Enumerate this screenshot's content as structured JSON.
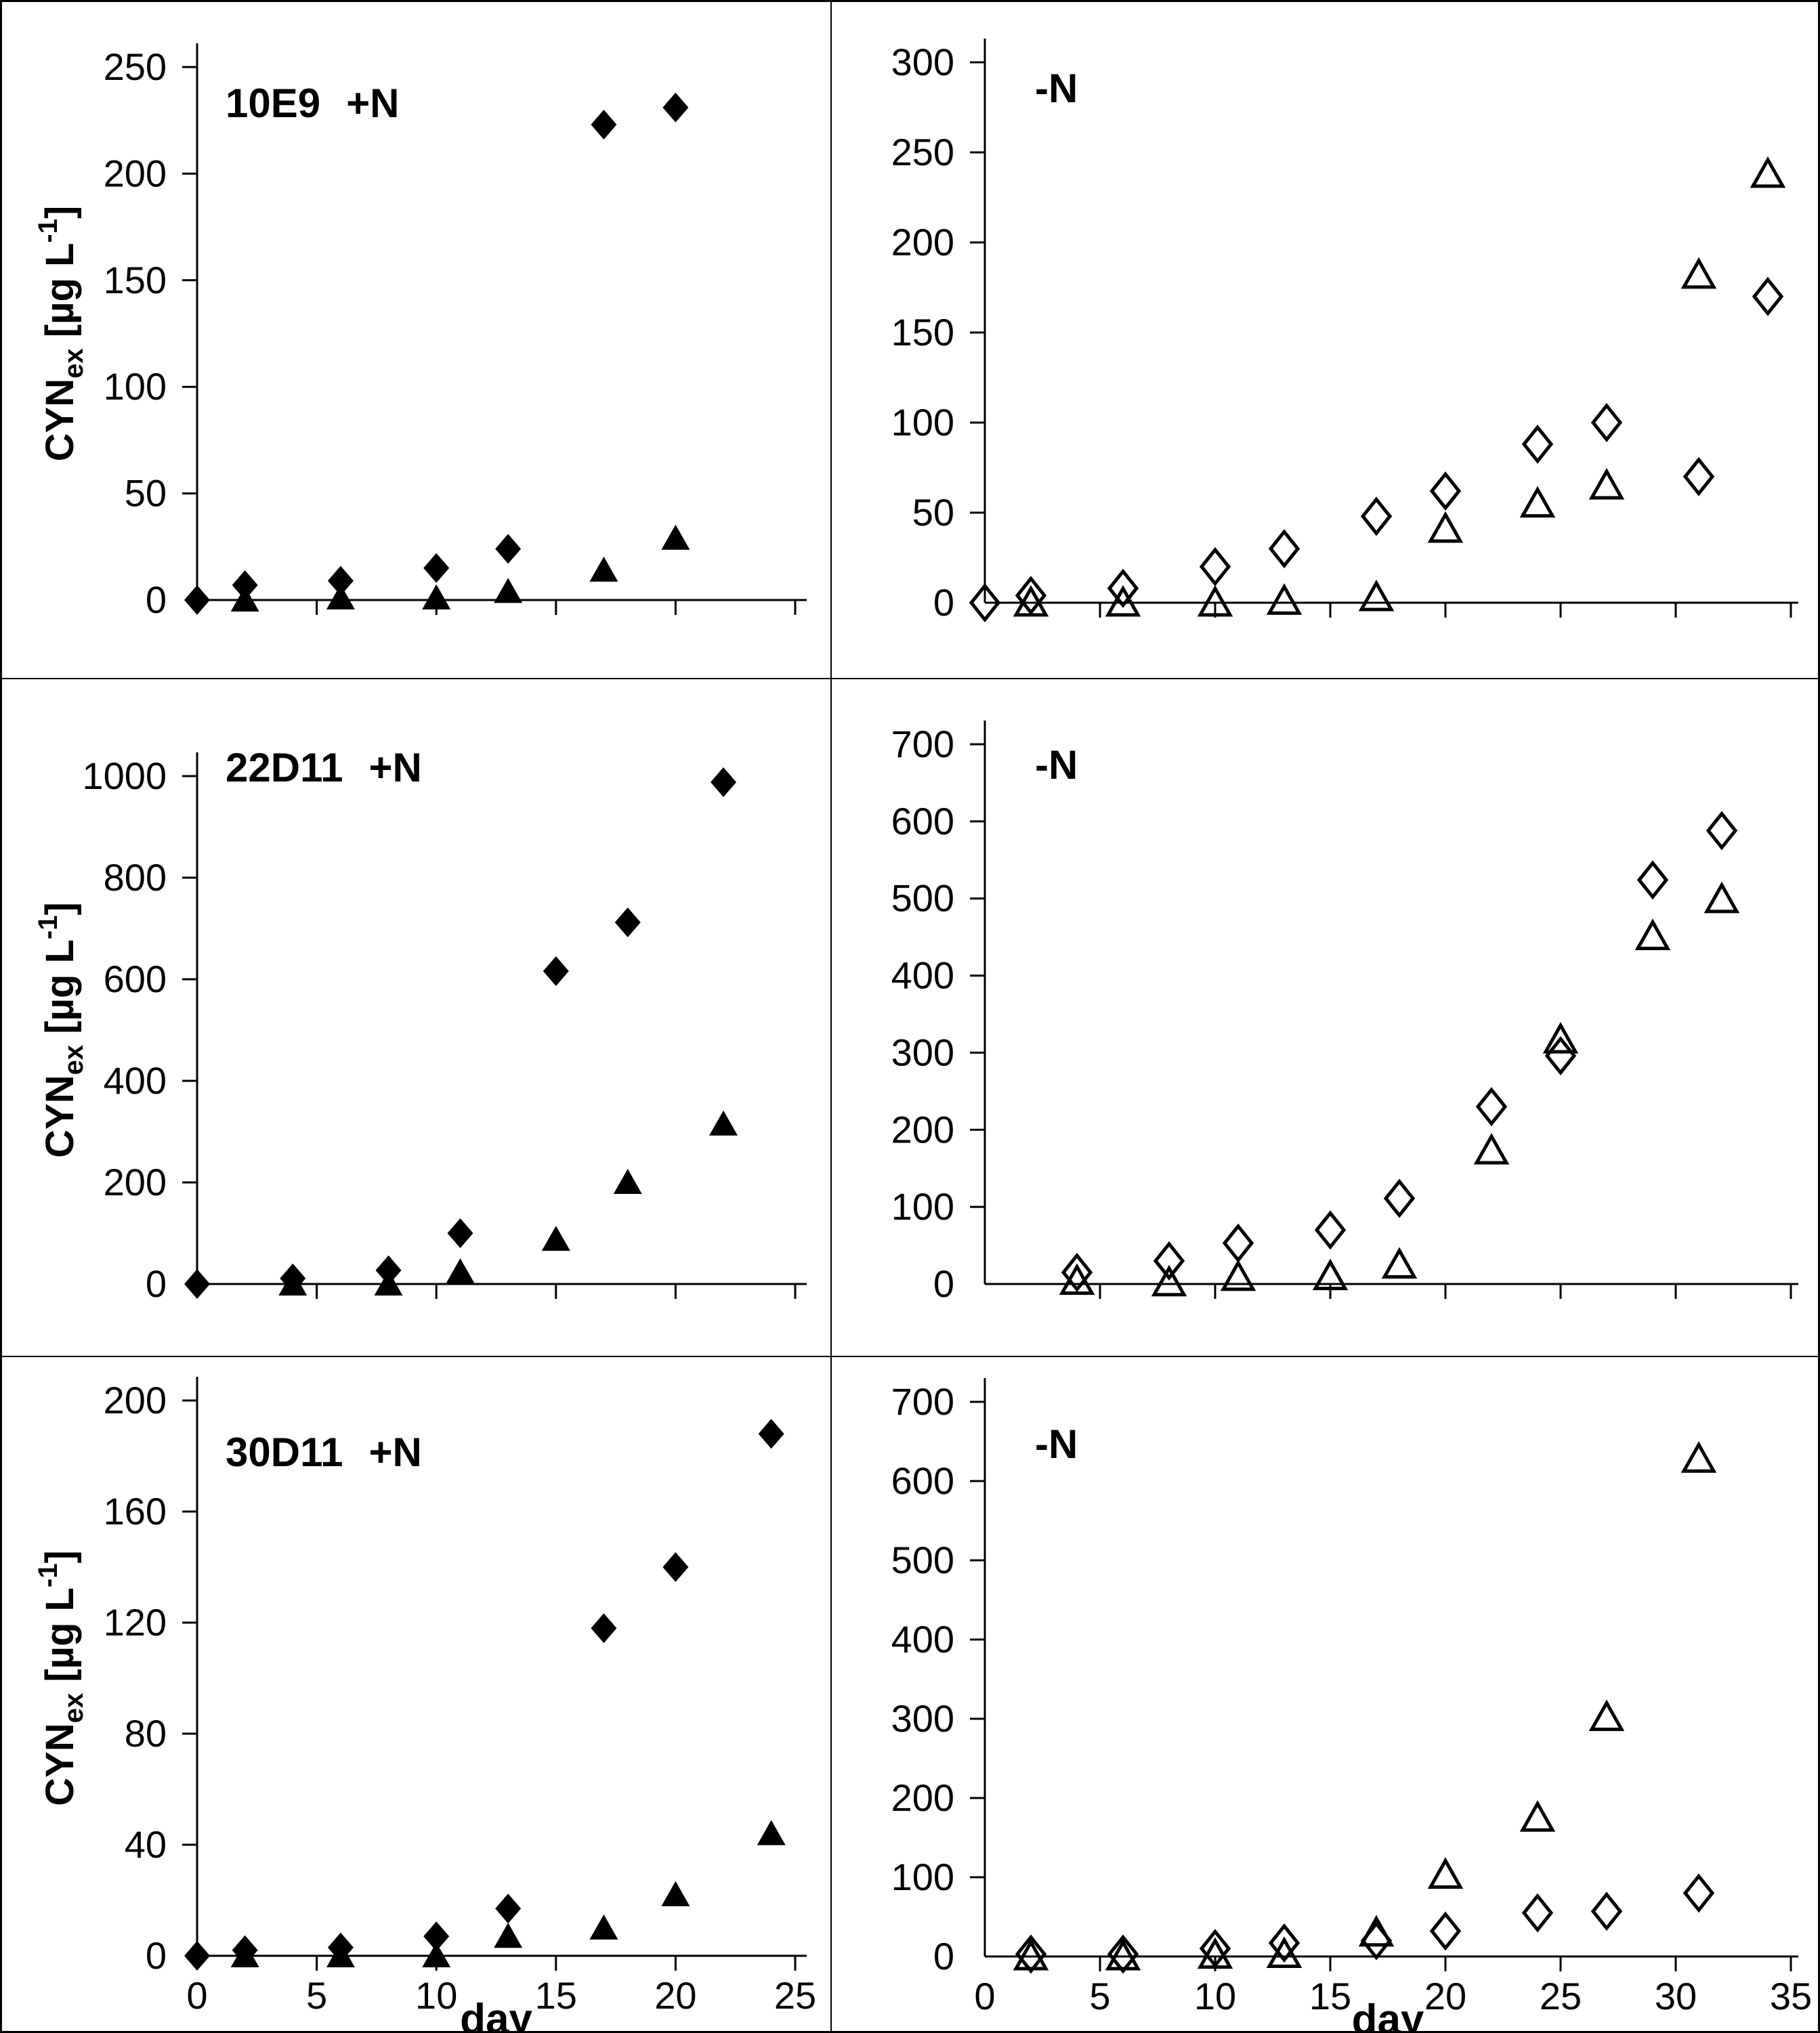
{
  "figure": {
    "background": "#ffffff",
    "foreground": "#000000",
    "y_axis_label_parts": {
      "base": "CYN",
      "sub": "ex",
      "unit_pre": " [µg L",
      "sup": "-1",
      "unit_post": "]"
    },
    "x_axis_label": "day"
  },
  "chart_data": [
    {
      "id": "10E9_plusN",
      "type": "scatter",
      "title": {
        "strain": "10E9",
        "condition": "+N"
      },
      "ylabel": "CYN_ex [µg L-1]",
      "xlabel": null,
      "x_axis": {
        "min": 0,
        "max": 25,
        "ticks": [
          0,
          5,
          10,
          15,
          20,
          25
        ],
        "tick_labels_visible": false
      },
      "y_axis": {
        "min": 0,
        "max": 250,
        "ticks": [
          0,
          50,
          100,
          150,
          200,
          250
        ]
      },
      "grid": false,
      "legend": null,
      "series": [
        {
          "name": "filled diamonds",
          "marker": "filled-diamond",
          "points": [
            [
              0,
              0
            ],
            [
              2,
              7
            ],
            [
              6,
              9
            ],
            [
              10,
              15
            ],
            [
              13,
              24
            ],
            [
              17,
              223
            ],
            [
              20,
              231
            ]
          ]
        },
        {
          "name": "filled triangles",
          "marker": "filled-triangle",
          "points": [
            [
              2,
              0
            ],
            [
              6,
              1
            ],
            [
              10,
              1
            ],
            [
              13,
              4
            ],
            [
              17,
              14
            ],
            [
              20,
              29
            ]
          ]
        }
      ]
    },
    {
      "id": "10E9_minusN",
      "type": "scatter",
      "title": {
        "strain": "",
        "condition": "-N"
      },
      "ylabel": null,
      "xlabel": null,
      "x_axis": {
        "min": 0,
        "max": 35,
        "ticks": [
          0,
          5,
          10,
          15,
          20,
          25,
          30,
          35
        ],
        "tick_labels_visible": false
      },
      "y_axis": {
        "min": 0,
        "max": 300,
        "ticks": [
          0,
          50,
          100,
          150,
          200,
          250,
          300
        ]
      },
      "grid": false,
      "legend": null,
      "series": [
        {
          "name": "open diamonds",
          "marker": "open-diamond",
          "points": [
            [
              0,
              0
            ],
            [
              2,
              4
            ],
            [
              6,
              8
            ],
            [
              10,
              20
            ],
            [
              13,
              30
            ],
            [
              17,
              48
            ],
            [
              20,
              62
            ],
            [
              24,
              88
            ],
            [
              27,
              100
            ],
            [
              31,
              70
            ],
            [
              34,
              170
            ]
          ]
        },
        {
          "name": "open triangles",
          "marker": "open-triangle",
          "points": [
            [
              2,
              0
            ],
            [
              6,
              0
            ],
            [
              10,
              0
            ],
            [
              13,
              1
            ],
            [
              17,
              3
            ],
            [
              20,
              41
            ],
            [
              24,
              55
            ],
            [
              27,
              65
            ],
            [
              31,
              182
            ],
            [
              34,
              238
            ]
          ]
        }
      ]
    },
    {
      "id": "22D11_plusN",
      "type": "scatter",
      "title": {
        "strain": "22D11",
        "condition": "+N"
      },
      "ylabel": "CYN_ex [µg L-1]",
      "xlabel": null,
      "x_axis": {
        "min": 0,
        "max": 25,
        "ticks": [
          0,
          5,
          10,
          15,
          20,
          25
        ],
        "tick_labels_visible": false
      },
      "y_axis": {
        "min": 0,
        "max": 1000,
        "ticks": [
          0,
          200,
          400,
          600,
          800,
          1000
        ]
      },
      "grid": false,
      "legend": null,
      "series": [
        {
          "name": "filled diamonds",
          "marker": "filled-diamond",
          "points": [
            [
              0,
              0
            ],
            [
              4,
              11
            ],
            [
              8,
              27
            ],
            [
              11,
              100
            ],
            [
              15,
              616
            ],
            [
              18,
              712
            ],
            [
              22,
              988
            ]
          ]
        },
        {
          "name": "filled triangles",
          "marker": "filled-triangle",
          "points": [
            [
              4,
              0
            ],
            [
              8,
              0
            ],
            [
              11,
              24
            ],
            [
              15,
              88
            ],
            [
              18,
              200
            ],
            [
              22,
              315
            ]
          ]
        }
      ]
    },
    {
      "id": "22D11_minusN",
      "type": "scatter",
      "title": {
        "strain": "",
        "condition": "-N"
      },
      "ylabel": null,
      "xlabel": null,
      "x_axis": {
        "min": 0,
        "max": 35,
        "ticks": [
          0,
          5,
          10,
          15,
          20,
          25,
          30,
          35
        ],
        "tick_labels_visible": false
      },
      "y_axis": {
        "min": 0,
        "max": 700,
        "ticks": [
          0,
          100,
          200,
          300,
          400,
          500,
          600,
          700
        ]
      },
      "grid": false,
      "legend": null,
      "series": [
        {
          "name": "open diamonds",
          "marker": "open-diamond",
          "points": [
            [
              4,
              15
            ],
            [
              8,
              30
            ],
            [
              11,
              53
            ],
            [
              15,
              70
            ],
            [
              18,
              111
            ],
            [
              22,
              230
            ],
            [
              25,
              296
            ],
            [
              29,
              524
            ],
            [
              32,
              588
            ]
          ]
        },
        {
          "name": "open triangles",
          "marker": "open-triangle",
          "points": [
            [
              4,
              4
            ],
            [
              8,
              2
            ],
            [
              11,
              9
            ],
            [
              15,
              10
            ],
            [
              18,
              25
            ],
            [
              22,
              173
            ],
            [
              25,
              317
            ],
            [
              29,
              451
            ],
            [
              32,
              499
            ]
          ]
        }
      ]
    },
    {
      "id": "30D11_plusN",
      "type": "scatter",
      "title": {
        "strain": "30D11",
        "condition": "+N"
      },
      "ylabel": "CYN_ex [µg L-1]",
      "xlabel": "day",
      "x_axis": {
        "min": 0,
        "max": 25,
        "ticks": [
          0,
          5,
          10,
          15,
          20,
          25
        ],
        "tick_labels_visible": true
      },
      "y_axis": {
        "min": 0,
        "max": 200,
        "ticks": [
          0,
          40,
          80,
          120,
          160,
          200
        ]
      },
      "grid": false,
      "legend": null,
      "series": [
        {
          "name": "filled diamonds",
          "marker": "filled-diamond",
          "points": [
            [
              0,
              0
            ],
            [
              2,
              2
            ],
            [
              6,
              3
            ],
            [
              10,
              7
            ],
            [
              13,
              17
            ],
            [
              17,
              118
            ],
            [
              20,
              140
            ],
            [
              24,
              188
            ]
          ]
        },
        {
          "name": "filled triangles",
          "marker": "filled-triangle",
          "points": [
            [
              2,
              0
            ],
            [
              6,
              0
            ],
            [
              10,
              0
            ],
            [
              13,
              7
            ],
            [
              17,
              10
            ],
            [
              20,
              22
            ],
            [
              24,
              44
            ]
          ]
        }
      ]
    },
    {
      "id": "30D11_minusN",
      "type": "scatter",
      "title": {
        "strain": "",
        "condition": "-N"
      },
      "ylabel": null,
      "xlabel": "day",
      "x_axis": {
        "min": 0,
        "max": 35,
        "ticks": [
          0,
          5,
          10,
          15,
          20,
          25,
          30,
          35
        ],
        "tick_labels_visible": true
      },
      "y_axis": {
        "min": 0,
        "max": 700,
        "ticks": [
          0,
          100,
          200,
          300,
          400,
          500,
          600,
          700
        ]
      },
      "grid": false,
      "legend": null,
      "series": [
        {
          "name": "open diamonds",
          "marker": "open-diamond",
          "points": [
            [
              2,
              3
            ],
            [
              6,
              3
            ],
            [
              10,
              10
            ],
            [
              13,
              17
            ],
            [
              17,
              20
            ],
            [
              20,
              32
            ],
            [
              24,
              55
            ],
            [
              27,
              57
            ],
            [
              31,
              80
            ]
          ]
        },
        {
          "name": "open triangles",
          "marker": "open-triangle",
          "points": [
            [
              2,
              0
            ],
            [
              6,
              0
            ],
            [
              10,
              2
            ],
            [
              13,
              3
            ],
            [
              17,
              30
            ],
            [
              20,
              103
            ],
            [
              24,
              175
            ],
            [
              27,
              302
            ],
            [
              31,
              628
            ]
          ]
        }
      ]
    }
  ]
}
